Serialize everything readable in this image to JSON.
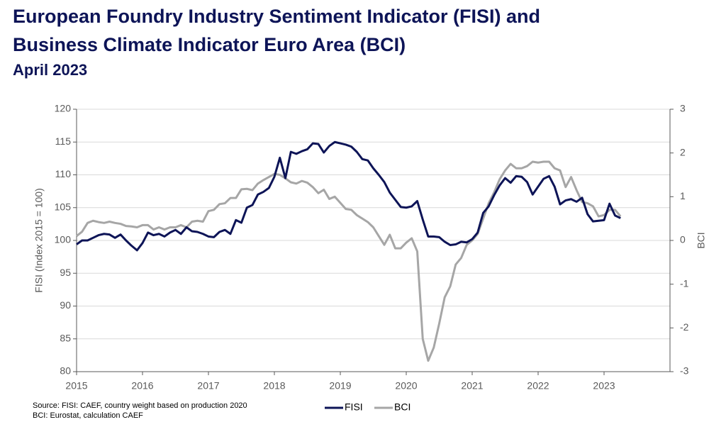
{
  "chart_data": {
    "type": "line",
    "title": "European Foundry Industry Sentiment Indicator (FISI) and",
    "title_line2": "Business Climate Indicator Euro Area (BCI)",
    "subtitle": "April 2023",
    "y_label": "FISI (Index 2015 = 100)",
    "y2_label": "BCI",
    "source_lines": [
      "Source: FISI: CAEF, country weight based on production 2020",
      "BCI: Eurostat, calculation CAEF"
    ],
    "x": [
      2015,
      2015.083,
      2015.167,
      2015.25,
      2015.333,
      2015.417,
      2015.5,
      2015.583,
      2015.667,
      2015.75,
      2015.833,
      2015.917,
      2016,
      2016.083,
      2016.167,
      2016.25,
      2016.333,
      2016.417,
      2016.5,
      2016.583,
      2016.667,
      2016.75,
      2016.833,
      2016.917,
      2017,
      2017.083,
      2017.167,
      2017.25,
      2017.333,
      2017.417,
      2017.5,
      2017.583,
      2017.667,
      2017.75,
      2017.833,
      2017.917,
      2018,
      2018.083,
      2018.167,
      2018.25,
      2018.333,
      2018.417,
      2018.5,
      2018.583,
      2018.667,
      2018.75,
      2018.833,
      2018.917,
      2019,
      2019.083,
      2019.167,
      2019.25,
      2019.333,
      2019.417,
      2019.5,
      2019.583,
      2019.667,
      2019.75,
      2019.833,
      2019.917,
      2020,
      2020.083,
      2020.167,
      2020.25,
      2020.333,
      2020.417,
      2020.5,
      2020.583,
      2020.667,
      2020.75,
      2020.833,
      2020.917,
      2021,
      2021.083,
      2021.167,
      2021.25,
      2021.333,
      2021.417,
      2021.5,
      2021.583,
      2021.667,
      2021.75,
      2021.833,
      2021.917,
      2022,
      2022.083,
      2022.167,
      2022.25,
      2022.333,
      2022.417,
      2022.5,
      2022.583,
      2022.667,
      2022.75,
      2022.833,
      2022.917,
      2023,
      2023.083,
      2023.167,
      2023.25
    ],
    "series": [
      {
        "name": "FISI",
        "color": "#0d1457",
        "axis": "y",
        "values": [
          99.4,
          100.0,
          100.0,
          100.4,
          100.8,
          101.0,
          100.9,
          100.4,
          100.9,
          100.0,
          99.2,
          98.5,
          99.6,
          101.2,
          100.8,
          101.0,
          100.6,
          101.2,
          101.6,
          101.0,
          102.0,
          101.4,
          101.3,
          101.0,
          100.6,
          100.5,
          101.3,
          101.6,
          101.0,
          103.1,
          102.7,
          105.0,
          105.4,
          107.0,
          107.4,
          108.0,
          109.7,
          112.6,
          109.5,
          113.5,
          113.2,
          113.6,
          113.9,
          114.8,
          114.7,
          113.4,
          114.4,
          115.0,
          114.8,
          114.6,
          114.3,
          113.5,
          112.4,
          112.2,
          111.0,
          110.0,
          108.9,
          107.3,
          106.2,
          105.1,
          105.0,
          105.2,
          106.0,
          103.2,
          100.6,
          100.6,
          100.5,
          99.8,
          99.3,
          99.4,
          99.8,
          99.7,
          100.2,
          101.2,
          104.2,
          105.2,
          106.9,
          108.4,
          109.5,
          108.8,
          109.8,
          109.7,
          108.9,
          107.0,
          108.2,
          109.4,
          109.8,
          108.2,
          105.5,
          106.1,
          106.3,
          105.9,
          106.5,
          104.0,
          102.9,
          103.0,
          103.1,
          105.6,
          103.8,
          103.4
        ]
      },
      {
        "name": "BCI",
        "color": "#a6a6a6",
        "axis": "y2",
        "values": [
          0.1,
          0.2,
          0.4,
          0.45,
          0.42,
          0.4,
          0.43,
          0.4,
          0.38,
          0.33,
          0.32,
          0.3,
          0.35,
          0.35,
          0.25,
          0.3,
          0.25,
          0.3,
          0.3,
          0.35,
          0.3,
          0.43,
          0.45,
          0.43,
          0.67,
          0.7,
          0.83,
          0.85,
          0.97,
          0.97,
          1.17,
          1.18,
          1.15,
          1.3,
          1.38,
          1.45,
          1.52,
          1.5,
          1.42,
          1.33,
          1.3,
          1.36,
          1.32,
          1.22,
          1.08,
          1.16,
          0.95,
          1.0,
          0.86,
          0.72,
          0.7,
          0.58,
          0.5,
          0.42,
          0.3,
          0.1,
          -0.1,
          0.13,
          -0.18,
          -0.18,
          -0.05,
          0.05,
          -0.25,
          -2.25,
          -2.75,
          -2.45,
          -1.9,
          -1.3,
          -1.05,
          -0.55,
          -0.4,
          -0.1,
          0.0,
          0.15,
          0.5,
          0.85,
          1.1,
          1.4,
          1.6,
          1.75,
          1.65,
          1.65,
          1.7,
          1.8,
          1.78,
          1.8,
          1.8,
          1.65,
          1.6,
          1.22,
          1.45,
          1.15,
          0.88,
          0.85,
          0.78,
          0.55,
          0.58,
          0.7,
          0.7,
          0.55
        ]
      }
    ],
    "xlim": [
      2015,
      2024
    ],
    "xticks": [
      2015,
      2016,
      2017,
      2018,
      2019,
      2020,
      2021,
      2022,
      2023
    ],
    "ylim": [
      80,
      120
    ],
    "yticks": [
      80,
      85,
      90,
      95,
      100,
      105,
      110,
      115,
      120
    ],
    "y2lim": [
      -3,
      3
    ],
    "y2ticks": [
      -3,
      -2,
      -1,
      0,
      1,
      2,
      3
    ],
    "grid": true,
    "legend": "bottom"
  }
}
